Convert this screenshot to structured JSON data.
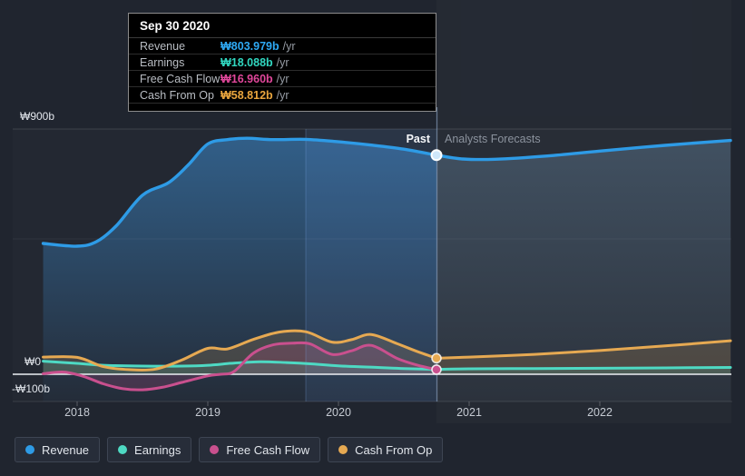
{
  "tooltip": {
    "date": "Sep 30 2020",
    "rows": [
      {
        "label": "Revenue",
        "value": "₩803.979b",
        "suffix": "/yr",
        "color": "#2ea9f4"
      },
      {
        "label": "Earnings",
        "value": "₩18.088b",
        "suffix": "/yr",
        "color": "#31d7c0"
      },
      {
        "label": "Free Cash Flow",
        "value": "₩16.960b",
        "suffix": "/yr",
        "color": "#e0479a"
      },
      {
        "label": "Cash From Op",
        "value": "₩58.812b",
        "suffix": "/yr",
        "color": "#eaa63e"
      }
    ]
  },
  "annotations": {
    "past_label": "Past",
    "forecast_label": "Analysts Forecasts"
  },
  "y_axis_labels": {
    "top": "₩900b",
    "zero": "₩0",
    "bottom": "-₩100b"
  },
  "x_axis_labels": [
    "2018",
    "2019",
    "2020",
    "2021",
    "2022"
  ],
  "legend": [
    {
      "label": "Revenue",
      "color": "#2e9be6"
    },
    {
      "label": "Earnings",
      "color": "#4ed9c3"
    },
    {
      "label": "Free Cash Flow",
      "color": "#c9508e"
    },
    {
      "label": "Cash From Op",
      "color": "#e6a952"
    }
  ],
  "chart_data": {
    "type": "area",
    "unit": "billions KRW (₩b) per year",
    "x_ticks": [
      2018,
      2019,
      2020,
      2021,
      2022
    ],
    "x_range": [
      2017.74,
      2023.0
    ],
    "y_range": [
      -100,
      900
    ],
    "y_gridline_values": [
      900,
      0,
      -100
    ],
    "divider_x": 2020.75,
    "highlight_band_x": [
      2019.75,
      2020.75
    ],
    "legend_position": "bottom",
    "series": [
      {
        "name": "Revenue",
        "color": "#2e9be6",
        "baseline": -100,
        "fill": "gradient-blue",
        "past": [
          [
            2017.74,
            480
          ],
          [
            2018.0,
            470
          ],
          [
            2018.15,
            487
          ],
          [
            2018.3,
            545
          ],
          [
            2018.5,
            657
          ],
          [
            2018.7,
            703
          ],
          [
            2018.85,
            768
          ],
          [
            2019.0,
            845
          ],
          [
            2019.15,
            861
          ],
          [
            2019.3,
            866
          ],
          [
            2019.5,
            861
          ],
          [
            2019.75,
            862
          ],
          [
            2020.0,
            853
          ],
          [
            2020.25,
            841
          ],
          [
            2020.5,
            826
          ],
          [
            2020.75,
            803.979
          ]
        ],
        "forecast": [
          [
            2020.75,
            803.979
          ],
          [
            2020.95,
            790
          ],
          [
            2021.2,
            789
          ],
          [
            2021.6,
            801
          ],
          [
            2022.0,
            819
          ],
          [
            2022.5,
            840
          ],
          [
            2023.0,
            858
          ]
        ]
      },
      {
        "name": "Earnings",
        "color": "#4ed9c3",
        "baseline": 0,
        "fill_opacity": 0.15,
        "past": [
          [
            2017.74,
            48
          ],
          [
            2018.0,
            40
          ],
          [
            2018.2,
            33
          ],
          [
            2018.5,
            30
          ],
          [
            2018.8,
            30
          ],
          [
            2019.0,
            33
          ],
          [
            2019.2,
            41
          ],
          [
            2019.4,
            46
          ],
          [
            2019.6,
            43
          ],
          [
            2019.8,
            38
          ],
          [
            2020.0,
            31
          ],
          [
            2020.3,
            25
          ],
          [
            2020.5,
            21
          ],
          [
            2020.75,
            18.088
          ]
        ],
        "forecast": [
          [
            2020.75,
            18.088
          ],
          [
            2021.0,
            20
          ],
          [
            2021.5,
            21
          ],
          [
            2022.0,
            22
          ],
          [
            2022.5,
            23.5
          ],
          [
            2023.0,
            25
          ]
        ]
      },
      {
        "name": "Cash From Op",
        "color": "#e6a952",
        "baseline": 0,
        "fill_opacity": 0.17,
        "past": [
          [
            2017.74,
            63
          ],
          [
            2018.0,
            62
          ],
          [
            2018.2,
            28
          ],
          [
            2018.4,
            17
          ],
          [
            2018.6,
            19
          ],
          [
            2018.8,
            52
          ],
          [
            2019.0,
            95
          ],
          [
            2019.15,
            93
          ],
          [
            2019.35,
            128
          ],
          [
            2019.55,
            155
          ],
          [
            2019.75,
            156
          ],
          [
            2019.95,
            118
          ],
          [
            2020.1,
            127
          ],
          [
            2020.25,
            146
          ],
          [
            2020.45,
            112
          ],
          [
            2020.6,
            84
          ],
          [
            2020.75,
            58.812
          ]
        ],
        "forecast": [
          [
            2020.75,
            58.812
          ],
          [
            2021.0,
            63
          ],
          [
            2021.5,
            73
          ],
          [
            2022.0,
            87
          ],
          [
            2022.5,
            104
          ],
          [
            2023.0,
            123
          ]
        ]
      },
      {
        "name": "Free Cash Flow",
        "color": "#c9508e",
        "baseline": 0,
        "fill_opacity": 0.2,
        "past": [
          [
            2017.74,
            2
          ],
          [
            2017.9,
            8
          ],
          [
            2018.05,
            -8
          ],
          [
            2018.2,
            -35
          ],
          [
            2018.35,
            -53
          ],
          [
            2018.5,
            -57
          ],
          [
            2018.65,
            -48
          ],
          [
            2018.8,
            -30
          ],
          [
            2019.0,
            -6
          ],
          [
            2019.1,
            0
          ],
          [
            2019.2,
            10
          ],
          [
            2019.35,
            78
          ],
          [
            2019.5,
            108
          ],
          [
            2019.65,
            114
          ],
          [
            2019.78,
            112
          ],
          [
            2019.95,
            73
          ],
          [
            2020.1,
            86
          ],
          [
            2020.25,
            106
          ],
          [
            2020.45,
            58
          ],
          [
            2020.6,
            34
          ],
          [
            2020.75,
            16.96
          ]
        ],
        "forecast": []
      }
    ],
    "marker_x": 2020.75,
    "marker_values": {
      "revenue": 803.979,
      "earnings": 18.088,
      "free_cash_flow": 16.96,
      "cash_from_op": 58.812
    }
  }
}
